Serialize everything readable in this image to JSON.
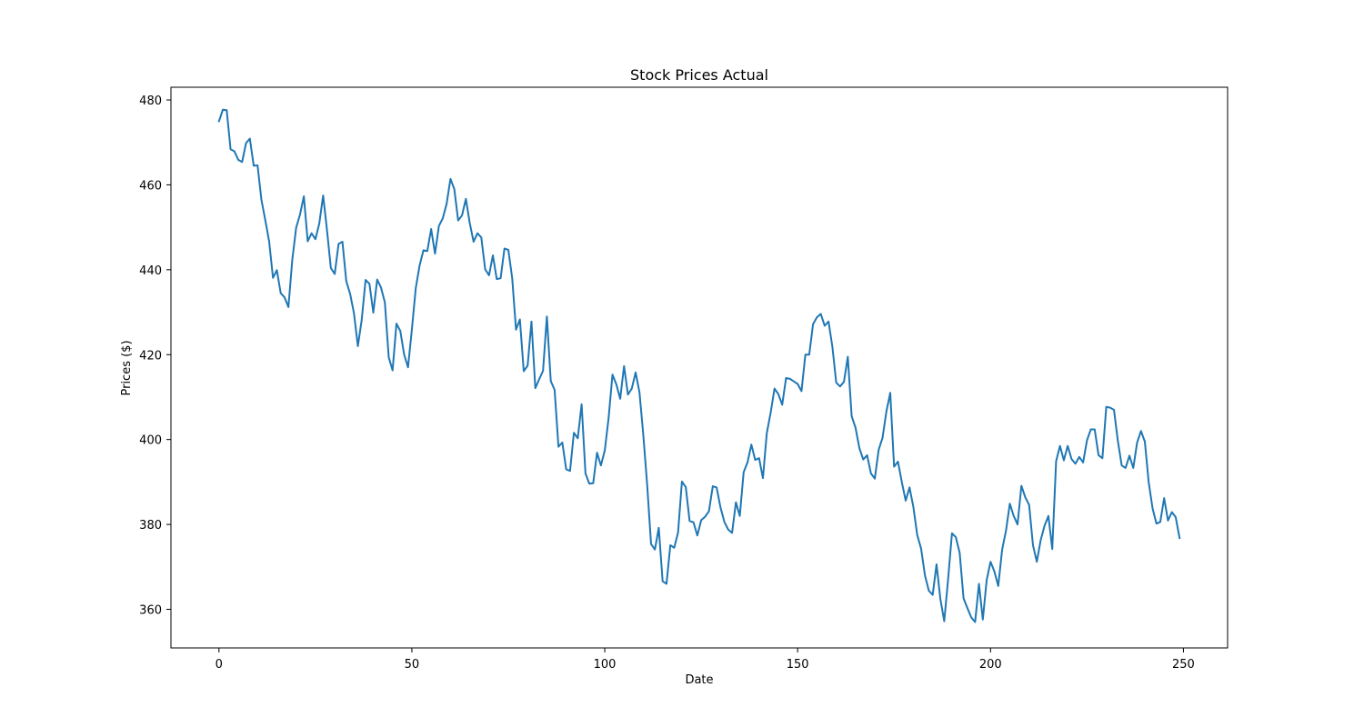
{
  "chart_data": {
    "type": "line",
    "title": "Stock Prices Actual",
    "xlabel": "Date",
    "ylabel": "Prices ($)",
    "xlim": [
      -12.45,
      261.45
    ],
    "ylim": [
      350.9,
      483.0
    ],
    "xticks": [
      0,
      50,
      100,
      150,
      200,
      250
    ],
    "yticks": [
      360,
      380,
      400,
      420,
      440,
      460,
      480
    ],
    "grid": false,
    "line_color": "#1f77b4",
    "series": [
      {
        "x_start": 0,
        "x_step": 1,
        "values": [
          475.0,
          477.7,
          477.6,
          468.4,
          467.9,
          465.9,
          465.4,
          469.8,
          470.9,
          464.5,
          464.6,
          456.5,
          451.7,
          446.7,
          438.1,
          439.9,
          434.5,
          433.5,
          431.2,
          442.3,
          449.9,
          453.0,
          457.3,
          446.7,
          448.6,
          447.2,
          450.9,
          457.5,
          449.3,
          440.4,
          439.0,
          446.1,
          446.6,
          437.3,
          434.3,
          429.7,
          422.0,
          428.2,
          437.6,
          436.7,
          429.9,
          437.7,
          435.8,
          432.3,
          419.4,
          416.3,
          427.3,
          425.6,
          420.0,
          417.0,
          425.9,
          435.6,
          441.0,
          444.6,
          444.4,
          449.6,
          443.8,
          450.3,
          452.1,
          455.5,
          461.4,
          459.0,
          451.6,
          452.8,
          456.7,
          451.0,
          446.6,
          448.6,
          447.6,
          440.1,
          438.7,
          443.4,
          437.8,
          438.0,
          445.0,
          444.7,
          438.1,
          425.9,
          428.3,
          416.1,
          417.4,
          427.8,
          412.1,
          414.2,
          416.2,
          429.0,
          413.8,
          411.7,
          398.3,
          399.3,
          393.0,
          392.6,
          401.6,
          400.3,
          408.3,
          392.0,
          389.6,
          389.7,
          396.9,
          393.9,
          397.4,
          405.1,
          415.3,
          413.0,
          409.6,
          417.3,
          410.6,
          412.0,
          415.8,
          411.1,
          401.0,
          389.2,
          375.4,
          374.1,
          379.2,
          366.6,
          366.0,
          375.1,
          374.5,
          378.1,
          390.1,
          388.8,
          380.8,
          380.5,
          377.4,
          381.0,
          381.8,
          383.1,
          389.0,
          388.7,
          384.0,
          380.6,
          378.8,
          378.0,
          385.2,
          382.0,
          392.3,
          394.6,
          398.8,
          395.2,
          395.6,
          390.9,
          401.5,
          406.3,
          412.0,
          410.7,
          408.2,
          414.5,
          414.3,
          413.7,
          413.1,
          411.4,
          420.0,
          420.0,
          427.2,
          428.8,
          429.6,
          426.8,
          427.8,
          421.9,
          413.4,
          412.5,
          413.6,
          419.5,
          405.5,
          402.8,
          398.0,
          395.3,
          396.3,
          392.0,
          390.8,
          397.6,
          400.4,
          406.6,
          411.0,
          393.6,
          394.8,
          390.0,
          385.6,
          388.7,
          384.1,
          377.5,
          374.3,
          368.0,
          364.4,
          363.4,
          370.6,
          362.4,
          357.2,
          367.1,
          377.9,
          377.0,
          373.3,
          362.6,
          360.3,
          358.1,
          357.0,
          366.0,
          357.6,
          366.9,
          371.2,
          368.9,
          365.5,
          374.0,
          378.5,
          384.9,
          382.0,
          380.0,
          389.1,
          386.4,
          384.6,
          375.1,
          371.2,
          376.3,
          379.7,
          382.0,
          374.2,
          394.9,
          398.5,
          395.1,
          398.5,
          395.4,
          394.3,
          395.9,
          394.6,
          399.8,
          402.4,
          402.4,
          396.3,
          395.6,
          407.7,
          407.5,
          407.0,
          399.7,
          393.9,
          393.3,
          396.2,
          393.3,
          399.3,
          402.0,
          399.5,
          389.9,
          383.8,
          380.2,
          380.6,
          386.2,
          380.9,
          382.9,
          381.7,
          376.8
        ]
      }
    ]
  }
}
